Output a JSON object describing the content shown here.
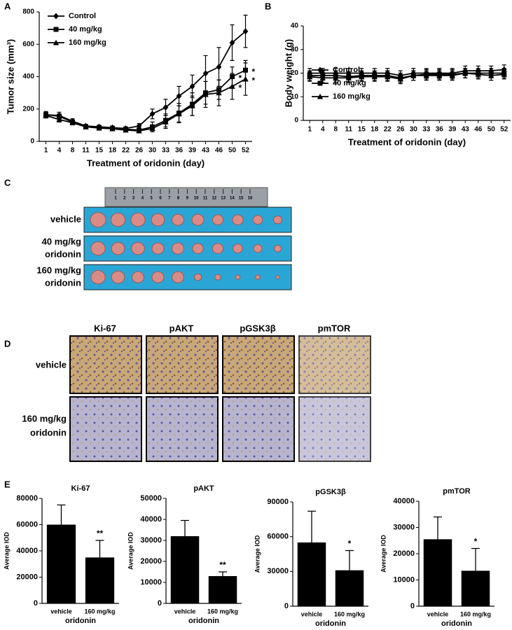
{
  "panel_labels": [
    "A",
    "B",
    "C",
    "D",
    "E"
  ],
  "chart_data": [
    {
      "type": "line",
      "xlabel": "Treatment of oridonin (day)",
      "ylabel": "Tumor size (mm³)",
      "categories": [
        1,
        4,
        8,
        11,
        15,
        18,
        22,
        26,
        30,
        33,
        36,
        39,
        43,
        46,
        50,
        52
      ],
      "ylim": [
        0,
        800
      ],
      "yticks": [
        0,
        200,
        400,
        600,
        800
      ],
      "legend": "upper left",
      "series": [
        {
          "name": "Control",
          "color": "#000000",
          "marker": "diamond",
          "values": [
            165,
            160,
            125,
            95,
            90,
            85,
            80,
            95,
            170,
            210,
            280,
            340,
            420,
            460,
            610,
            680
          ],
          "errors": [
            20,
            20,
            15,
            10,
            10,
            10,
            10,
            15,
            30,
            50,
            60,
            70,
            110,
            120,
            110,
            100
          ]
        },
        {
          "name": "40 mg/kg",
          "color": "#000000",
          "marker": "square",
          "values": [
            165,
            155,
            120,
            90,
            85,
            80,
            75,
            70,
            90,
            130,
            175,
            230,
            300,
            320,
            400,
            440
          ],
          "errors": [
            15,
            15,
            12,
            10,
            10,
            10,
            10,
            10,
            30,
            40,
            60,
            70,
            70,
            60,
            60,
            60
          ]
        },
        {
          "name": "160 mg/kg",
          "color": "#000000",
          "marker": "triangle",
          "values": [
            160,
            135,
            115,
            90,
            82,
            78,
            70,
            65,
            80,
            120,
            170,
            220,
            290,
            300,
            340,
            385
          ],
          "errors": [
            15,
            15,
            12,
            10,
            8,
            8,
            8,
            10,
            20,
            40,
            50,
            60,
            80,
            80,
            80,
            100
          ]
        }
      ],
      "annotations": [
        {
          "label": "*",
          "series": "40 mg/kg",
          "category": 50
        },
        {
          "label": "*",
          "series": "40 mg/kg",
          "category": 52
        },
        {
          "label": "*",
          "series": "160 mg/kg",
          "category": 50
        },
        {
          "label": "*",
          "series": "160 mg/kg",
          "category": 52
        }
      ]
    },
    {
      "type": "line",
      "xlabel": "Treatment of oridonin (day)",
      "ylabel": "Body weight (g)",
      "categories": [
        1,
        4,
        8,
        11,
        15,
        18,
        22,
        26,
        30,
        33,
        36,
        39,
        43,
        46,
        50,
        52
      ],
      "ylim": [
        0,
        40
      ],
      "yticks": [
        0,
        10,
        20,
        30,
        40
      ],
      "legend": "lower left",
      "series": [
        {
          "name": "Control",
          "color": "#000000",
          "marker": "diamond",
          "values": [
            20,
            20,
            20,
            20,
            20,
            20,
            20,
            19,
            20,
            20,
            20,
            20,
            21,
            21,
            21,
            21.5
          ],
          "errors": [
            2,
            2,
            2,
            2,
            2,
            2,
            2,
            2,
            2,
            2,
            2,
            2,
            2,
            2,
            2,
            2
          ]
        },
        {
          "name": "40 mg/kg",
          "color": "#000000",
          "marker": "square",
          "values": [
            19,
            19,
            19,
            18.5,
            19,
            19,
            19,
            18,
            19,
            19.5,
            19.5,
            19.5,
            20,
            20,
            20,
            20
          ],
          "errors": [
            2,
            2,
            2,
            2,
            2,
            2,
            2,
            2,
            2,
            2,
            2,
            2,
            2,
            2,
            2,
            2
          ]
        },
        {
          "name": "160 mg/kg",
          "color": "#000000",
          "marker": "triangle",
          "values": [
            18.5,
            18,
            18,
            18,
            18.5,
            18.5,
            18.5,
            17.5,
            19,
            19,
            19,
            19,
            20,
            19.5,
            19,
            19.5
          ],
          "errors": [
            2,
            2,
            2,
            2,
            2,
            2,
            2,
            2,
            2,
            2,
            2,
            2,
            2,
            2,
            2,
            2
          ]
        }
      ]
    },
    {
      "type": "bar",
      "title": "Ki-67",
      "ylabel": "Average IOD",
      "xlabel": "oridonin",
      "categories": [
        "vehicle",
        "160 mg/kg"
      ],
      "values": [
        60000,
        35000
      ],
      "errors": [
        15000,
        13000
      ],
      "color": "#000000",
      "ylim": [
        0,
        80000
      ],
      "yticks": [
        0,
        20000,
        40000,
        60000,
        80000
      ],
      "annotations": [
        {
          "label": "**",
          "category": "160 mg/kg"
        }
      ]
    },
    {
      "type": "bar",
      "title": "pAKT",
      "ylabel": "Average IOD",
      "xlabel": "oridonin",
      "categories": [
        "vehicle",
        "160 mg/kg"
      ],
      "values": [
        32000,
        13000
      ],
      "errors": [
        7500,
        2000
      ],
      "color": "#000000",
      "ylim": [
        0,
        50000
      ],
      "yticks": [
        0,
        10000,
        20000,
        30000,
        40000,
        50000
      ],
      "annotations": [
        {
          "label": "**",
          "category": "160 mg/kg"
        }
      ]
    },
    {
      "type": "bar",
      "title": "pGSK3β",
      "ylabel": "Average IOD",
      "xlabel": "oridonin",
      "categories": [
        "vehicle",
        "160 mg/kg"
      ],
      "values": [
        55000,
        31000
      ],
      "errors": [
        27000,
        17000
      ],
      "color": "#000000",
      "ylim": [
        0,
        90000
      ],
      "yticks": [
        0,
        30000,
        60000,
        90000
      ],
      "annotations": [
        {
          "label": "*",
          "category": "160 mg/kg"
        }
      ]
    },
    {
      "type": "bar",
      "title": "pmTOR",
      "ylabel": "Average IOD",
      "xlabel": "oridonin",
      "categories": [
        "vehicle",
        "160 mg/kg"
      ],
      "values": [
        25500,
        13500
      ],
      "errors": [
        8500,
        8500
      ],
      "color": "#000000",
      "ylim": [
        0,
        40000
      ],
      "yticks": [
        0,
        10000,
        20000,
        30000,
        40000
      ],
      "annotations": [
        {
          "label": "*",
          "category": "160 mg/kg"
        }
      ]
    }
  ],
  "photo_panels": {
    "ruler_ticks": [
      1,
      2,
      3,
      4,
      5,
      6,
      7,
      8,
      9,
      10,
      11,
      12,
      13,
      14,
      15,
      16
    ],
    "tumor_rows": [
      [
        "vehicle"
      ],
      [
        "40 mg/kg",
        "oridonin"
      ],
      [
        "160 mg/kg",
        "oridonin"
      ]
    ],
    "ihc_columns": [
      "Ki-67",
      "pAKT",
      "pGSK3β",
      "pmTOR"
    ],
    "ihc_rows": [
      [
        "vehicle"
      ],
      [
        "160 mg/kg",
        "oridonin"
      ]
    ]
  }
}
